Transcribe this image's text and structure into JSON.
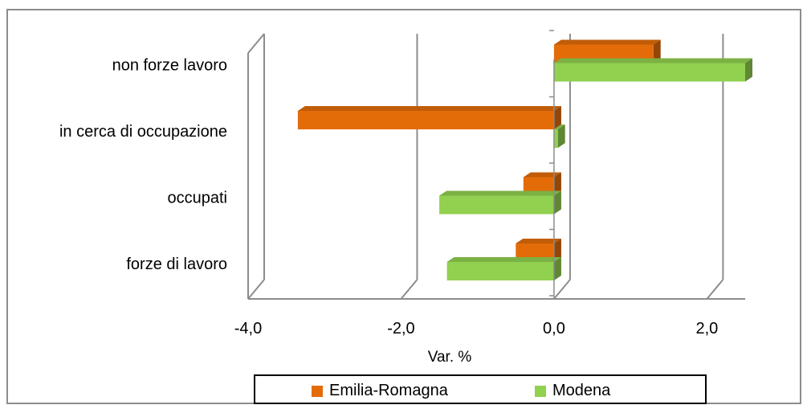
{
  "chart_data": {
    "type": "bar",
    "orientation": "horizontal",
    "style": "3d",
    "categories": [
      "forze di lavoro",
      "occupati",
      "in cerca di occupazione",
      "non forze lavoro"
    ],
    "series": [
      {
        "name": "Emilia-Romagna",
        "color": "#e36c09",
        "values": [
          -0.5,
          -0.4,
          -3.35,
          1.3
        ]
      },
      {
        "name": "Modena",
        "color": "#92d050",
        "values": [
          -1.4,
          -1.5,
          0.05,
          2.5
        ]
      }
    ],
    "xlabel": "Var. %",
    "xlim": [
      -4,
      2.5
    ],
    "ticks": [
      "-4,0",
      "-2,0",
      "0,0",
      "2,0"
    ],
    "tick_values": [
      -4,
      -2,
      0,
      2
    ],
    "grid": true,
    "legend": "bottom"
  }
}
